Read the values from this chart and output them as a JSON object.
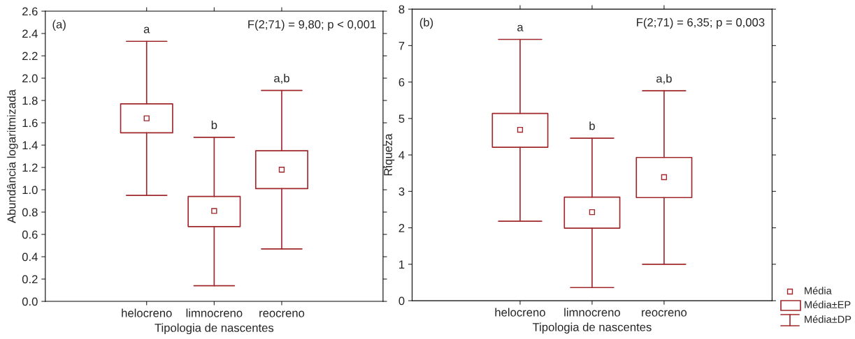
{
  "chart_data": [
    {
      "type": "box",
      "xlabel": "Tipologia de nascentes",
      "ylabel": "Abundância logaritmizada",
      "categories": [
        "helocreno",
        "limnocreno",
        "reocreno"
      ],
      "color": "#a0282d",
      "boxes": [
        {
          "low": 0.95,
          "q1": 1.51,
          "median": 1.64,
          "q3": 1.77,
          "high": 2.33
        },
        {
          "low": 0.14,
          "q1": 0.67,
          "median": 0.81,
          "q3": 0.94,
          "high": 1.47
        },
        {
          "low": 0.47,
          "q1": 1.01,
          "median": 1.18,
          "q3": 1.35,
          "high": 1.89
        }
      ],
      "ylim": [
        0,
        2.6
      ],
      "yticks": [
        {
          "value": 0,
          "label": "0.0"
        },
        {
          "value": 0.2,
          "label": "0.2"
        },
        {
          "value": 0.4,
          "label": "0.4"
        },
        {
          "value": 0.6,
          "label": "0.6"
        },
        {
          "value": 0.8,
          "label": "0.8"
        },
        {
          "value": 1.0,
          "label": "1.0"
        },
        {
          "value": 1.2,
          "label": "1.2"
        },
        {
          "value": 1.4,
          "label": "1.4"
        },
        {
          "value": 1.6,
          "label": "1.6"
        },
        {
          "value": 1.8,
          "label": "1.8"
        },
        {
          "value": 2.0,
          "label": "2.0"
        },
        {
          "value": 2.2,
          "label": "2.2"
        },
        {
          "value": 2.4,
          "label": "2.4"
        },
        {
          "value": 2.6,
          "label": "2.6"
        }
      ],
      "grid": false,
      "marker": "square",
      "annotations": [
        "(a)",
        "F(2;71) = 9,80; p < 0,001",
        {
          "text": "a",
          "x": "helocreno",
          "y": 2.33
        },
        {
          "text": "b",
          "x": "limnocreno",
          "y": 1.47
        },
        {
          "text": "a,b",
          "x": "reocreno",
          "y": 1.89
        }
      ]
    },
    {
      "type": "box",
      "xlabel": "Tipologia de nascentes",
      "ylabel": "Riqueza",
      "categories": [
        "helocreno",
        "limnocreno",
        "reocreno"
      ],
      "color": "#a0282d",
      "boxes": [
        {
          "low": 2.18,
          "q1": 4.21,
          "median": 4.69,
          "q3": 5.14,
          "high": 7.17
        },
        {
          "low": 0.36,
          "q1": 1.99,
          "median": 2.43,
          "q3": 2.84,
          "high": 4.46
        },
        {
          "low": 1.0,
          "q1": 2.83,
          "median": 3.39,
          "q3": 3.93,
          "high": 5.76
        }
      ],
      "ylim": [
        0,
        8
      ],
      "yticks": [
        0,
        1,
        2,
        3,
        4,
        5,
        6,
        7,
        8
      ],
      "grid": false,
      "marker": "square",
      "annotations": [
        "(b)",
        "F(2;71) = 6,35; p = 0,003",
        {
          "text": "a",
          "x": "helocreno",
          "y": 7.17
        },
        {
          "text": "b",
          "x": "limnocreno",
          "y": 4.46
        },
        {
          "text": "a,b",
          "x": "reocreno",
          "y": 5.76
        },
        "Média",
        "Média±EP",
        "Média±DP"
      ]
    }
  ]
}
